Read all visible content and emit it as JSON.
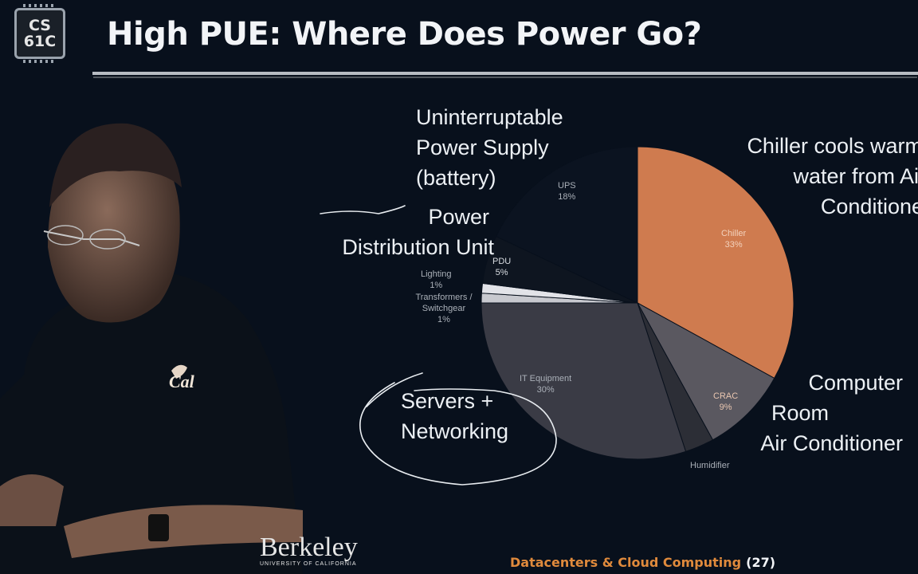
{
  "logo": {
    "line1": "CS",
    "line2": "61C"
  },
  "slide": {
    "title": "High PUE: Where Does Power Go?",
    "footer_topic": "Datacenters & Cloud Computing",
    "page_number": "(27)",
    "university": "Berkeley",
    "university_sub": "UNIVERSITY OF CALIFORNIA"
  },
  "colors": {
    "background": "#08101c",
    "chiller": "#cf7b4f",
    "crac": "#5a5860",
    "it_equipment": "#3a3b45",
    "humidifier": "#2c2e36",
    "footer_accent": "#e08a3c"
  },
  "annotations": {
    "ups": [
      "Uninterruptable",
      "Power Supply",
      "(battery)"
    ],
    "pdu": [
      "Power",
      "Distribution Unit"
    ],
    "chiller": [
      "Chiller cools warm",
      "water from Air",
      "Conditioner"
    ],
    "crac": [
      "Computer",
      "Room",
      "Air Conditioner"
    ],
    "it": [
      "Servers +",
      "Networking"
    ]
  },
  "chart_data": {
    "type": "pie",
    "slices": [
      {
        "label": "Chiller",
        "value": 33,
        "value_label": "33%"
      },
      {
        "label": "CRAC",
        "value": 9,
        "value_label": "9%"
      },
      {
        "label": "Humidifier",
        "value": 3,
        "value_label": ""
      },
      {
        "label": "IT Equipment",
        "value": 30,
        "value_label": "30%"
      },
      {
        "label": "Transformers / Switchgear",
        "value": 1,
        "value_label": "1%"
      },
      {
        "label": "Lighting",
        "value": 1,
        "value_label": "1%"
      },
      {
        "label": "PDU",
        "value": 5,
        "value_label": "5%"
      },
      {
        "label": "UPS",
        "value": 18,
        "value_label": "18%"
      }
    ]
  }
}
